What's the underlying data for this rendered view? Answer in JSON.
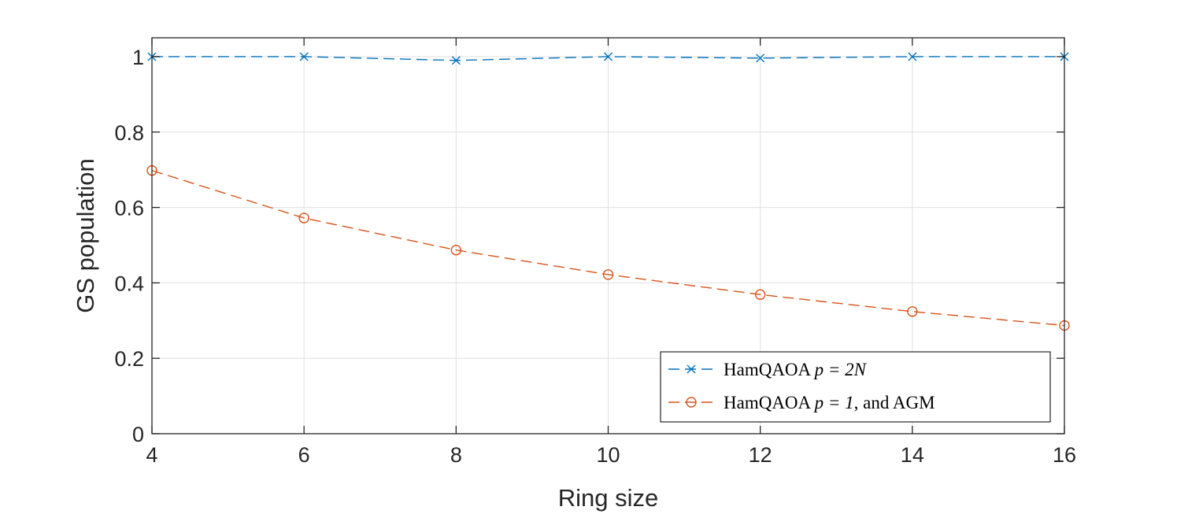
{
  "chart_data": {
    "type": "line",
    "title": "",
    "xlabel": "Ring size",
    "ylabel": "GS population",
    "xlim": [
      4,
      16
    ],
    "ylim": [
      0,
      1.05
    ],
    "xticks": [
      "4",
      "6",
      "8",
      "10",
      "12",
      "14",
      "16"
    ],
    "yticks": [
      "0",
      "0.2",
      "0.4",
      "0.6",
      "0.8",
      "1"
    ],
    "grid": true,
    "legend_position": "bottom-right",
    "x": [
      4,
      6,
      8,
      10,
      12,
      14,
      16
    ],
    "series": [
      {
        "name_prefix": "HamQAOA",
        "name_math": "p = 2N",
        "name_suffix": "",
        "marker": "x",
        "line_style": "dashed",
        "color": "#0072BD",
        "values": [
          1.0,
          1.0,
          0.99,
          1.0,
          0.996,
          1.0,
          1.0
        ]
      },
      {
        "name_prefix": "HamQAOA",
        "name_math": "p = 1",
        "name_suffix": ", and AGM",
        "marker": "o",
        "line_style": "dashed",
        "color": "#D95319",
        "values": [
          0.698,
          0.572,
          0.487,
          0.422,
          0.369,
          0.324,
          0.287
        ]
      }
    ]
  }
}
